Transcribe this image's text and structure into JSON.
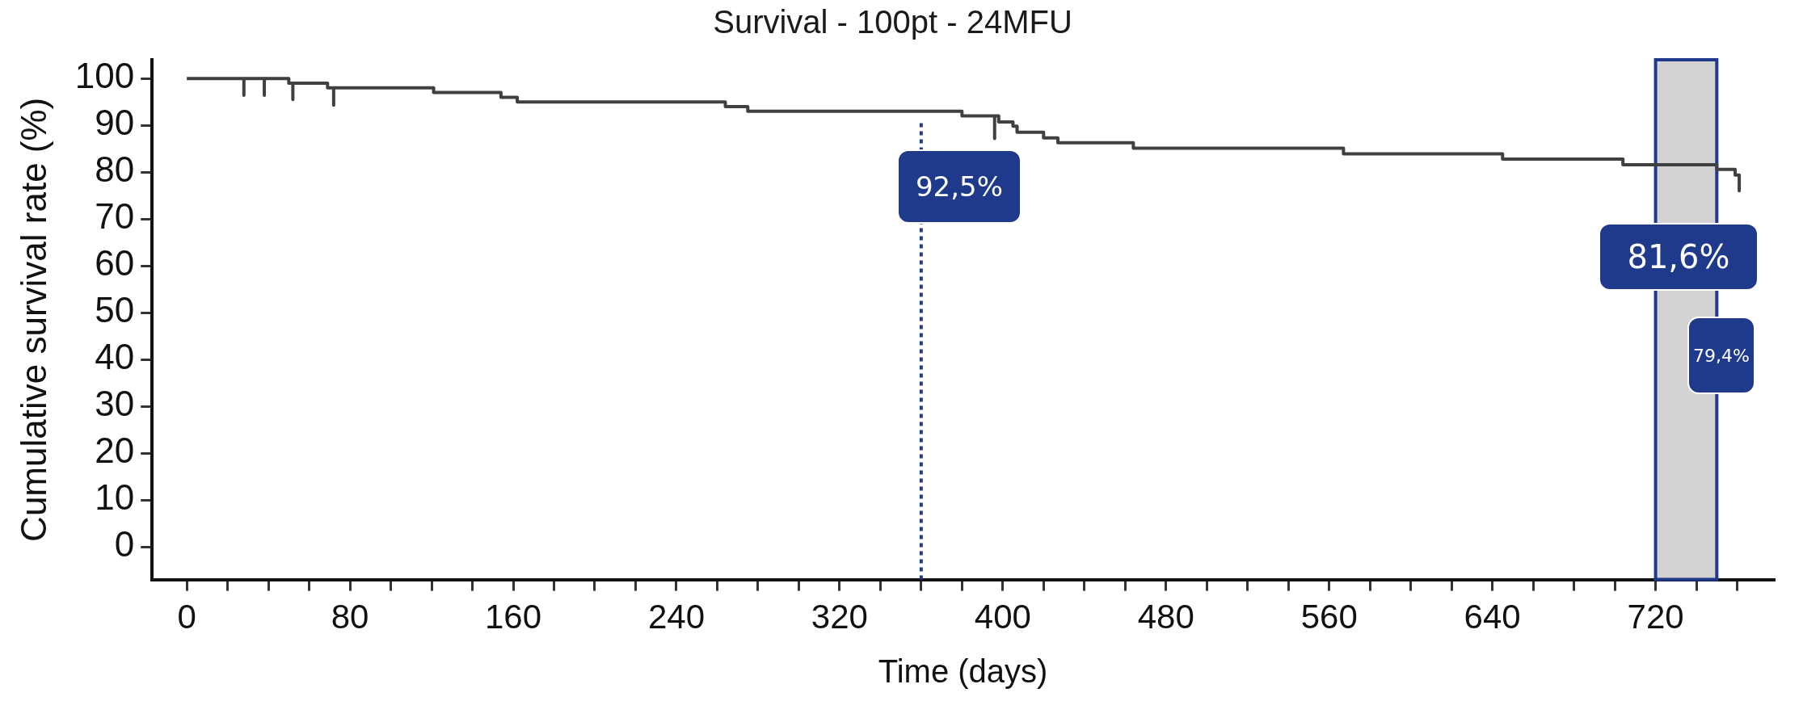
{
  "chart_data": {
    "type": "line",
    "title": "Survival - 100pt - 24MFU",
    "xlabel": "Time (days)",
    "ylabel": "Cumulative survival rate (%)",
    "series": [
      {
        "color": "#404040",
        "x": [
          0,
          28,
          28,
          28,
          38,
          38,
          38,
          50,
          50,
          52,
          52,
          52,
          69,
          69,
          72,
          72,
          72,
          121,
          121,
          154,
          154,
          162,
          162,
          264,
          264,
          275,
          275,
          380,
          380,
          396,
          396,
          396,
          398,
          398,
          405,
          405,
          407,
          407,
          420,
          420,
          427,
          427,
          464,
          464,
          567,
          567,
          645,
          645,
          704,
          704,
          750,
          750,
          759,
          759,
          761,
          761
        ],
        "values": [
          100,
          100,
          96.4,
          100,
          100,
          96.4,
          100,
          100,
          99,
          99,
          95.5,
          99,
          99,
          98,
          98,
          94.3,
          98,
          98,
          97,
          97,
          96,
          96,
          95,
          95,
          94,
          94,
          93,
          93,
          92,
          92,
          87.2,
          92,
          92,
          90.7,
          90.7,
          89.8,
          89.8,
          88.5,
          88.5,
          87.3,
          87.3,
          86.3,
          86.3,
          85.1,
          85.1,
          83.9,
          83.9,
          82.8,
          82.8,
          81.6,
          81.6,
          80.6,
          80.6,
          79.4,
          79.4,
          76
        ]
      }
    ],
    "xlim": [
      -17,
      778
    ],
    "ylim": [
      -7,
      104
    ],
    "xticks": [
      0,
      {
        "value": 20,
        "label": null
      },
      {
        "value": 40,
        "label": null
      },
      {
        "value": 60,
        "label": null
      },
      80,
      {
        "value": 100,
        "label": null
      },
      {
        "value": 120,
        "label": null
      },
      {
        "value": 140,
        "label": null
      },
      160,
      {
        "value": 180,
        "label": null
      },
      {
        "value": 200,
        "label": null
      },
      {
        "value": 220,
        "label": null
      },
      240,
      {
        "value": 260,
        "label": null
      },
      {
        "value": 280,
        "label": null
      },
      {
        "value": 300,
        "label": null
      },
      320,
      {
        "value": 340,
        "label": null
      },
      {
        "value": 360,
        "label": null
      },
      {
        "value": 380,
        "label": null
      },
      400,
      {
        "value": 420,
        "label": null
      },
      {
        "value": 440,
        "label": null
      },
      {
        "value": 460,
        "label": null
      },
      480,
      {
        "value": 500,
        "label": null
      },
      {
        "value": 520,
        "label": null
      },
      {
        "value": 540,
        "label": null
      },
      560,
      {
        "value": 580,
        "label": null
      },
      {
        "value": 600,
        "label": null
      },
      {
        "value": 620,
        "label": null
      },
      640,
      {
        "value": 660,
        "label": null
      },
      {
        "value": 680,
        "label": null
      },
      {
        "value": 700,
        "label": null
      },
      720,
      {
        "value": 740,
        "label": null
      },
      {
        "value": 760,
        "label": null
      }
    ],
    "yticks": [
      0,
      10,
      20,
      30,
      40,
      50,
      60,
      70,
      80,
      90,
      100
    ],
    "ref_lines": [
      {
        "axis": "x",
        "value": 360,
        "color": "#1f3a8a",
        "line_style": "dotted"
      }
    ],
    "bands": [
      {
        "axis": "x",
        "from": 720,
        "to": 750,
        "color": "#d3d3d3"
      }
    ],
    "annotations": [
      "92,5%",
      "81,6%",
      "79,4%"
    ],
    "grid": false,
    "legend": false,
    "marker": "none",
    "line_style": "solid"
  }
}
